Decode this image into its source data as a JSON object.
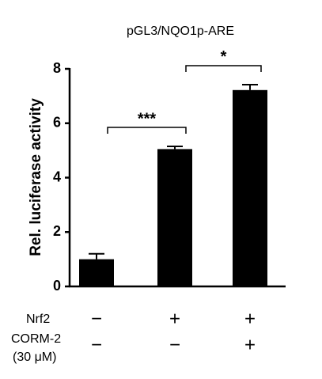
{
  "chart_data": {
    "type": "bar",
    "title": "pGL3/NQO1p-ARE",
    "y_label": "Rel. luciferase activity",
    "values": [
      1.0,
      5.05,
      7.22
    ],
    "errors": [
      0.2,
      0.1,
      0.2
    ],
    "color": "#000000",
    "ylim": [
      0,
      8
    ],
    "yticks": [
      0,
      2,
      4,
      6,
      8
    ],
    "conditions": [
      {
        "label_lines": [
          "Nrf2"
        ],
        "signs": [
          "−",
          "+",
          "+"
        ]
      },
      {
        "label_lines": [
          "CORM-2",
          "(30 μM)"
        ],
        "signs": [
          "−",
          "−",
          "+"
        ]
      }
    ],
    "annotations": [
      {
        "text": "***",
        "from": 0,
        "to": 1
      },
      {
        "text": "*",
        "from": 1,
        "to": 2
      }
    ]
  }
}
